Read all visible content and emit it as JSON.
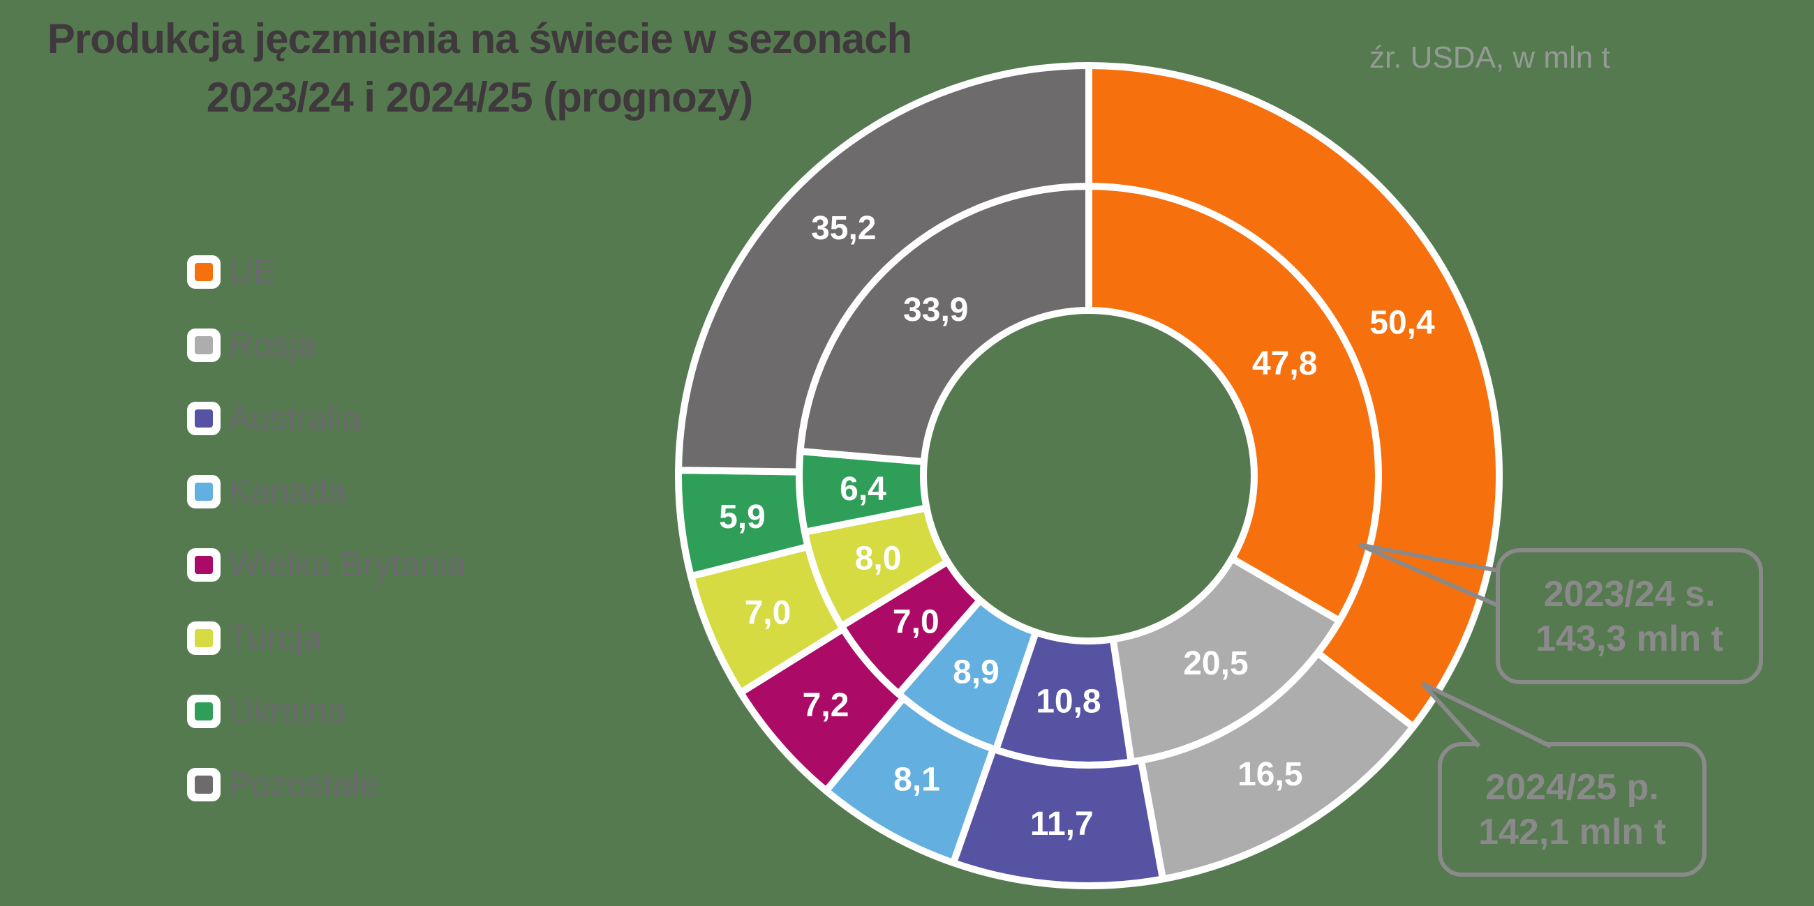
{
  "title": {
    "line1": "Produkcja jęczmienia na świecie w sezonach",
    "line2": "2023/24 i 2024/25 (prognozy)"
  },
  "source_note": "źr. USDA, w mln t",
  "legend": {
    "items": [
      {
        "label": "UE",
        "slug": "ue",
        "color": "#F7700E"
      },
      {
        "label": "Rosja",
        "slug": "rosja",
        "color": "#ADADAD"
      },
      {
        "label": "Australia",
        "slug": "australia",
        "color": "#5753A3"
      },
      {
        "label": "Kanada",
        "slug": "kanada",
        "color": "#63AFE0"
      },
      {
        "label": "Wielka Brytania",
        "slug": "wielka-brytania",
        "color": "#AB0A66"
      },
      {
        "label": "Turcja",
        "slug": "turcja",
        "color": "#D5DB40"
      },
      {
        "label": "Ukraina",
        "slug": "ukraina",
        "color": "#2F9E58"
      },
      {
        "label": "Pozostałe",
        "slug": "pozostale",
        "color": "#6D6B6B"
      }
    ]
  },
  "chart_data": {
    "type": "pie",
    "subtype": "nested-donut",
    "title": "Produkcja jęczmienia na świecie w sezonach 2023/24 i 2024/25 (prognozy)",
    "unit": "mln t",
    "start_angle_deg": 0,
    "direction": "clockwise",
    "legend_position": "left",
    "categories": [
      "UE",
      "Rosja",
      "Australia",
      "Kanada",
      "Wielka Brytania",
      "Turcja",
      "Ukraina",
      "Pozostałe"
    ],
    "colors": [
      "#F7700E",
      "#ADADAD",
      "#5753A3",
      "#63AFE0",
      "#AB0A66",
      "#D5DB40",
      "#2F9E58",
      "#6D6B6B"
    ],
    "series": [
      {
        "name": "2023/24 s.",
        "ring": "inner",
        "total": 143.3,
        "total_label": "143,3 mln t",
        "values": [
          47.8,
          20.5,
          10.8,
          8.9,
          7.0,
          8.0,
          6.4,
          33.9
        ]
      },
      {
        "name": "2024/25 p.",
        "ring": "outer",
        "total": 142.1,
        "total_label": "142,1 mln t",
        "values": [
          50.4,
          16.5,
          11.7,
          8.1,
          7.2,
          7.0,
          5.9,
          35.2
        ]
      }
    ]
  },
  "callouts": [
    {
      "line1": "2023/24 s.",
      "line2": "143,3 mln t"
    },
    {
      "line1": "2024/25 p.",
      "line2": "142,1 mln t"
    }
  ],
  "colors": {
    "background": "#567A50",
    "title_text": "#3F393D",
    "legend_text": "#6A6A6E",
    "source_text": "#949B94",
    "callout": "#8A8A8A",
    "value_label": "#FFFFFF",
    "separator": "#FFFFFF"
  }
}
